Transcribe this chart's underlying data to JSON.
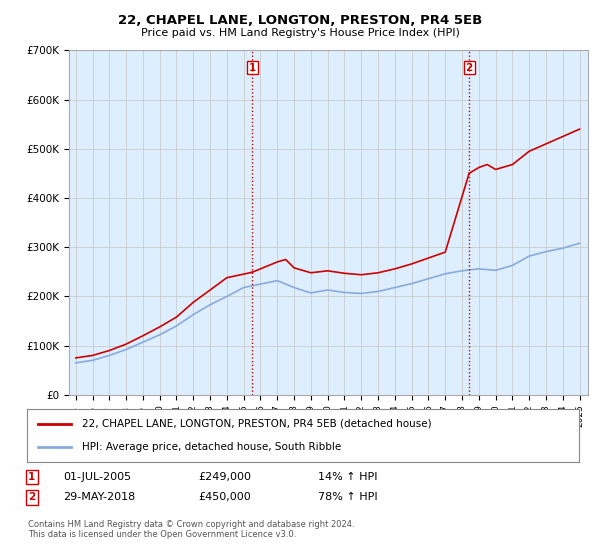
{
  "title": "22, CHAPEL LANE, LONGTON, PRESTON, PR4 5EB",
  "subtitle": "Price paid vs. HM Land Registry's House Price Index (HPI)",
  "legend_line1": "22, CHAPEL LANE, LONGTON, PRESTON, PR4 5EB (detached house)",
  "legend_line2": "HPI: Average price, detached house, South Ribble",
  "footer": "Contains HM Land Registry data © Crown copyright and database right 2024.\nThis data is licensed under the Open Government Licence v3.0.",
  "annotation1": {
    "num": "1",
    "date": "01-JUL-2005",
    "price": "£249,000",
    "hpi": "14% ↑ HPI"
  },
  "annotation2": {
    "num": "2",
    "date": "29-MAY-2018",
    "price": "£450,000",
    "hpi": "78% ↑ HPI"
  },
  "sale1_year": 2005.5,
  "sale1_price": 249000,
  "sale2_year": 2018.42,
  "sale2_price": 450000,
  "red_color": "#cc0000",
  "blue_color": "#88aadd",
  "grid_color": "#cccccc",
  "background_color": "#ddeeff",
  "ylim": [
    0,
    700000
  ],
  "xlim": [
    1994.6,
    2025.5
  ],
  "years_hpi": [
    1995,
    1996,
    1997,
    1998,
    1999,
    2000,
    2001,
    2002,
    2003,
    2004,
    2005,
    2006,
    2007,
    2008,
    2009,
    2010,
    2011,
    2012,
    2013,
    2014,
    2015,
    2016,
    2017,
    2018,
    2019,
    2020,
    2021,
    2022,
    2023,
    2024,
    2025
  ],
  "hpi_values": [
    65000,
    70000,
    80000,
    92000,
    107000,
    122000,
    140000,
    163000,
    183000,
    200000,
    218000,
    225000,
    232000,
    218000,
    207000,
    213000,
    208000,
    206000,
    210000,
    218000,
    226000,
    236000,
    246000,
    252000,
    256000,
    253000,
    263000,
    282000,
    291000,
    298000,
    308000
  ],
  "years_red_pre": [
    1995,
    1996,
    1997,
    1998,
    1999,
    2000,
    2001,
    2002,
    2003,
    2004,
    2005.5
  ],
  "red_pre": [
    75000,
    80000,
    90000,
    103000,
    120000,
    138000,
    158000,
    188000,
    213000,
    238000,
    249000
  ],
  "years_red_mid": [
    2005.5,
    2006,
    2007,
    2007.5,
    2008,
    2009,
    2010,
    2011,
    2012,
    2013,
    2014,
    2015,
    2016,
    2017,
    2018.42
  ],
  "red_mid": [
    249000,
    256000,
    270000,
    275000,
    258000,
    248000,
    252000,
    247000,
    244000,
    248000,
    256000,
    266000,
    278000,
    290000,
    450000
  ],
  "years_red_post": [
    2018.42,
    2019,
    2019.5,
    2020,
    2021,
    2022,
    2023,
    2024,
    2025
  ],
  "red_post": [
    450000,
    462000,
    468000,
    458000,
    468000,
    495000,
    510000,
    525000,
    540000
  ]
}
